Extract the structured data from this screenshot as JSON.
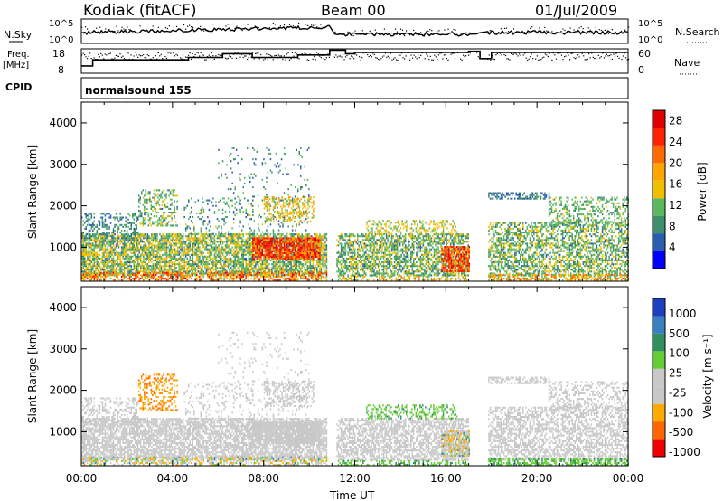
{
  "header": {
    "station": "Kodiak (fitACF)",
    "beam": "Beam 00",
    "date": "01/Jul/2009"
  },
  "strip_labels": {
    "nsky": "N.Sky",
    "freq_line1": "Freq.",
    "freq_line2": "[MHz]",
    "cpid": "CPID",
    "nsearch": "N.Search",
    "nave": "Nave",
    "cpid_value": "normalsound 155",
    "nsky_ticks": [
      "10^5",
      "10^0"
    ],
    "freq_ticks": [
      "18",
      "8"
    ],
    "nsearch_ticks": [
      "10^5",
      "10^0"
    ],
    "nave_ticks": [
      "60",
      "0"
    ]
  },
  "colors": {
    "power_scale": [
      "#0000ff",
      "#2a5db0",
      "#3c8f6a",
      "#5cb85c",
      "#f0c000",
      "#ffa500",
      "#ff6a00",
      "#ff2200",
      "#e00000"
    ],
    "velocity_scale": [
      "#1f3fbf",
      "#3c7fc0",
      "#2f8f5f",
      "#66cc33",
      "#c8c8c8",
      "#c8c8c8",
      "#ffaa00",
      "#ff6600",
      "#ee0000"
    ],
    "ground_scatter": "#c8c8c8"
  },
  "chart_data": [
    {
      "type": "line",
      "title": "N.Sky / N.Search",
      "x_range": [
        "00:00",
        "24:00"
      ],
      "ylabel_left": "N.Sky",
      "ylabel_right": "N.Search",
      "y_log_left": true,
      "yticks_left": [
        "10^5",
        "10^0"
      ],
      "yticks_right": [
        "10^5",
        "10^0"
      ]
    },
    {
      "type": "line",
      "title": "Freq. / Nave",
      "ylabel_left": "Freq. [MHz]",
      "ylabel_right": "Nave",
      "yticks_left": [
        18,
        8
      ],
      "yticks_right": [
        60,
        0
      ],
      "ylim_left": [
        8,
        18
      ],
      "ylim_right": [
        0,
        60
      ],
      "series": [
        {
          "name": "Freq.",
          "x": [
            0,
            0.5,
            2.0,
            4.7,
            6.2,
            7.5,
            9.5,
            10.9,
            11.6,
            12.0,
            17.0,
            17.5,
            18.0,
            24.0
          ],
          "y": [
            11,
            13.5,
            13.5,
            14.5,
            16,
            14.5,
            15.5,
            17.5,
            16,
            16.5,
            17,
            14,
            16.5,
            16.5
          ]
        }
      ]
    },
    {
      "type": "heatmap",
      "title": "Power",
      "xlabel": "Time UT",
      "ylabel": "Slant Range [km]",
      "x_ticks": [
        "00:00",
        "04:00",
        "08:00",
        "12:00",
        "16:00",
        "20:00",
        "00:00"
      ],
      "y_ticks": [
        1000,
        2000,
        3000,
        4000
      ],
      "xlim_hours": [
        0,
        24
      ],
      "ylim": [
        180,
        4500
      ],
      "colorbar_label": "Power [dB]",
      "colorbar_ticks": [
        4,
        8,
        12,
        16,
        20,
        24,
        28
      ],
      "colorbar_range": [
        0,
        30
      ]
    },
    {
      "type": "heatmap",
      "title": "Velocity",
      "xlabel": "Time UT",
      "ylabel": "Slant Range [km]",
      "x_ticks": [
        "00:00",
        "04:00",
        "08:00",
        "12:00",
        "16:00",
        "20:00",
        "00:00"
      ],
      "y_ticks": [
        1000,
        2000,
        3000,
        4000
      ],
      "xlim_hours": [
        0,
        24
      ],
      "ylim": [
        180,
        4500
      ],
      "colorbar_label": "Velocity [m s⁻¹]",
      "colorbar_ticks": [
        1000,
        500,
        100,
        25,
        -25,
        -100,
        -500,
        -1000
      ]
    }
  ],
  "scatter_regions": [
    {
      "t0": 0.0,
      "t1": 10.8,
      "r0": 300,
      "r1": 1300,
      "p": 0.75,
      "pw": [
        6,
        18
      ],
      "vel": "ground"
    },
    {
      "t0": 7.5,
      "t1": 10.5,
      "r0": 700,
      "r1": 1200,
      "p": 0.85,
      "pw": [
        18,
        30
      ],
      "vel": "ground"
    },
    {
      "t0": 0.0,
      "t1": 10.8,
      "r0": 180,
      "r1": 380,
      "p": 0.6,
      "pw": [
        12,
        28
      ],
      "vel": "mixed"
    },
    {
      "t0": 0.0,
      "t1": 2.5,
      "r0": 1200,
      "r1": 1800,
      "p": 0.35,
      "pw": [
        4,
        12
      ],
      "vel": "ground"
    },
    {
      "t0": 2.5,
      "t1": 4.2,
      "r0": 1500,
      "r1": 2400,
      "p": 0.35,
      "pw": [
        6,
        16
      ],
      "vel": "orange"
    },
    {
      "t0": 4.5,
      "t1": 10.0,
      "r0": 1300,
      "r1": 2200,
      "p": 0.15,
      "pw": [
        4,
        14
      ],
      "vel": "ground"
    },
    {
      "t0": 8.0,
      "t1": 10.2,
      "r0": 1600,
      "r1": 2200,
      "p": 0.4,
      "pw": [
        12,
        20
      ],
      "vel": "ground"
    },
    {
      "t0": 6.0,
      "t1": 10.0,
      "r0": 2200,
      "r1": 3400,
      "p": 0.06,
      "pw": [
        4,
        12
      ],
      "vel": "ground"
    },
    {
      "t0": 11.2,
      "t1": 17.0,
      "r0": 300,
      "r1": 1300,
      "p": 0.65,
      "pw": [
        6,
        16
      ],
      "vel": "ground"
    },
    {
      "t0": 15.8,
      "t1": 17.0,
      "r0": 400,
      "r1": 1000,
      "p": 0.75,
      "pw": [
        18,
        30
      ],
      "vel": "mixed"
    },
    {
      "t0": 12.5,
      "t1": 16.5,
      "r0": 1300,
      "r1": 1650,
      "p": 0.35,
      "pw": [
        10,
        18
      ],
      "vel": "green"
    },
    {
      "t0": 11.2,
      "t1": 17.0,
      "r0": 180,
      "r1": 300,
      "p": 0.5,
      "pw": [
        10,
        22
      ],
      "vel": "green"
    },
    {
      "t0": 17.8,
      "t1": 24.0,
      "r0": 300,
      "r1": 1600,
      "p": 0.55,
      "pw": [
        6,
        16
      ],
      "vel": "ground"
    },
    {
      "t0": 17.8,
      "t1": 24.0,
      "r0": 180,
      "r1": 320,
      "p": 0.6,
      "pw": [
        10,
        24
      ],
      "vel": "green"
    },
    {
      "t0": 17.8,
      "t1": 20.5,
      "r0": 2150,
      "r1": 2300,
      "p": 0.6,
      "pw": [
        4,
        10
      ],
      "vel": "ground"
    },
    {
      "t0": 20.5,
      "t1": 24.0,
      "r0": 1500,
      "r1": 2200,
      "p": 0.35,
      "pw": [
        8,
        14
      ],
      "vel": "ground"
    }
  ],
  "data_gaps_hours": [
    [
      10.9,
      11.1
    ],
    [
      17.05,
      17.3
    ],
    [
      17.5,
      17.8
    ]
  ]
}
